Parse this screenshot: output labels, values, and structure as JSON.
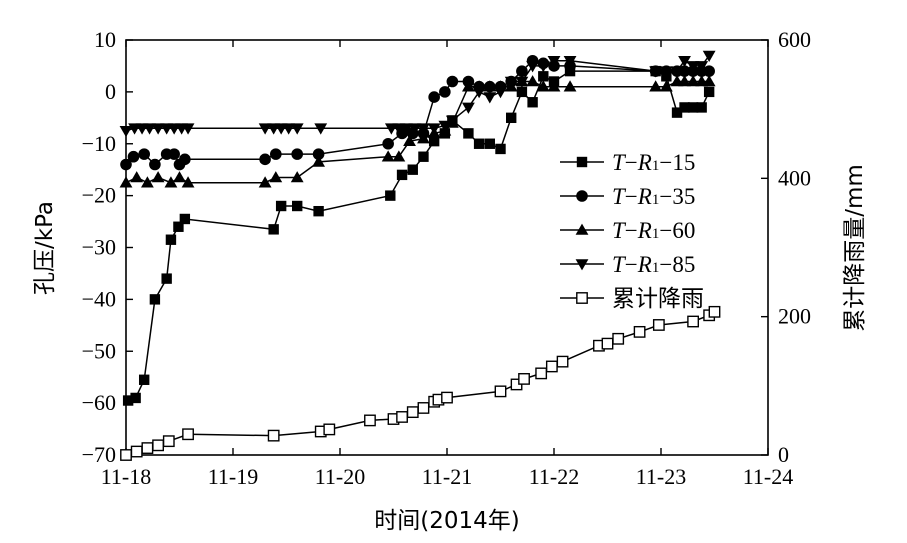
{
  "chart_data": {
    "type": "line",
    "ylabel_left": "孔压/kPa",
    "ylabel_right": "累计降雨量/mm",
    "xlabel": "时间(2014年)",
    "x_ticks": [
      "11-18",
      "11-19",
      "11-20",
      "11-21",
      "11-22",
      "11-23",
      "11-24"
    ],
    "xlim": [
      0,
      6
    ],
    "y_left_ticks": [
      "10",
      "0",
      "−10",
      "−20",
      "−30",
      "−40",
      "−50",
      "−60",
      "−70"
    ],
    "y_left_tick_values": [
      10,
      0,
      -10,
      -20,
      -30,
      -40,
      -50,
      -60,
      -70
    ],
    "ylim_left": [
      -70,
      10
    ],
    "y_right_ticks": [
      "0",
      "200",
      "400",
      "600"
    ],
    "y_right_tick_values": [
      0,
      200,
      400,
      600
    ],
    "ylim_right": [
      0,
      600
    ],
    "legend_position": "right-middle",
    "series": [
      {
        "key": "tr15",
        "name": "T−R1−15",
        "legend": {
          "t": "T",
          "dash1": "−",
          "r": "R",
          "sub": "1",
          "rest": "−15"
        },
        "marker": "square-filled",
        "axis": "left",
        "points": [
          [
            0.02,
            -59.5
          ],
          [
            0.09,
            -59
          ],
          [
            0.17,
            -55.5
          ],
          [
            0.27,
            -40
          ],
          [
            0.38,
            -36
          ],
          [
            0.42,
            -28.5
          ],
          [
            0.49,
            -26
          ],
          [
            0.55,
            -24.5
          ],
          [
            1.38,
            -26.5
          ],
          [
            1.45,
            -22
          ],
          [
            1.6,
            -22
          ],
          [
            1.8,
            -23
          ],
          [
            2.47,
            -20
          ],
          [
            2.58,
            -16
          ],
          [
            2.68,
            -15
          ],
          [
            2.78,
            -12.5
          ],
          [
            2.88,
            -9.5
          ],
          [
            2.98,
            -8
          ],
          [
            3.05,
            -5.5
          ],
          [
            3.2,
            -8
          ],
          [
            3.3,
            -10
          ],
          [
            3.4,
            -10
          ],
          [
            3.5,
            -11
          ],
          [
            3.6,
            -5
          ],
          [
            3.7,
            0
          ],
          [
            3.8,
            -2
          ],
          [
            3.9,
            3
          ],
          [
            4.0,
            2
          ],
          [
            4.15,
            4
          ],
          [
            4.95,
            4
          ],
          [
            5.05,
            3
          ],
          [
            5.15,
            -4
          ],
          [
            5.22,
            -3
          ],
          [
            5.3,
            -3
          ],
          [
            5.38,
            -3
          ],
          [
            5.45,
            0
          ]
        ]
      },
      {
        "key": "tr35",
        "name": "T−R1−35",
        "legend": {
          "t": "T",
          "dash1": "−",
          "r": "R",
          "sub": "1",
          "rest": "−35"
        },
        "marker": "circle-filled",
        "axis": "left",
        "points": [
          [
            0.0,
            -14
          ],
          [
            0.07,
            -12.5
          ],
          [
            0.17,
            -12
          ],
          [
            0.27,
            -14
          ],
          [
            0.38,
            -12
          ],
          [
            0.45,
            -12
          ],
          [
            0.5,
            -14
          ],
          [
            0.55,
            -13
          ],
          [
            1.3,
            -13
          ],
          [
            1.4,
            -12
          ],
          [
            1.6,
            -12
          ],
          [
            1.8,
            -12
          ],
          [
            2.45,
            -10
          ],
          [
            2.58,
            -8
          ],
          [
            2.68,
            -8
          ],
          [
            2.78,
            -8
          ],
          [
            2.88,
            -1
          ],
          [
            2.98,
            0
          ],
          [
            3.05,
            2
          ],
          [
            3.2,
            2
          ],
          [
            3.3,
            1
          ],
          [
            3.4,
            1
          ],
          [
            3.5,
            1
          ],
          [
            3.6,
            2
          ],
          [
            3.7,
            4
          ],
          [
            3.8,
            6
          ],
          [
            3.9,
            5.5
          ],
          [
            4.0,
            5
          ],
          [
            4.15,
            5
          ],
          [
            4.95,
            4
          ],
          [
            5.05,
            4
          ],
          [
            5.15,
            4
          ],
          [
            5.22,
            4
          ],
          [
            5.3,
            4
          ],
          [
            5.38,
            4
          ],
          [
            5.45,
            4
          ]
        ]
      },
      {
        "key": "tr60",
        "name": "T−R1−60",
        "legend": {
          "t": "T",
          "dash1": "−",
          "r": "R",
          "sub": "1",
          "rest": "−60"
        },
        "marker": "triangle-up-filled",
        "axis": "left",
        "points": [
          [
            0.0,
            -17.5
          ],
          [
            0.1,
            -16.5
          ],
          [
            0.2,
            -17.5
          ],
          [
            0.3,
            -16.5
          ],
          [
            0.42,
            -17.5
          ],
          [
            0.5,
            -16.5
          ],
          [
            0.58,
            -17.5
          ],
          [
            1.3,
            -17.5
          ],
          [
            1.4,
            -16.5
          ],
          [
            1.6,
            -16.5
          ],
          [
            1.8,
            -13.5
          ],
          [
            2.45,
            -12.5
          ],
          [
            2.55,
            -12.5
          ],
          [
            2.65,
            -9.5
          ],
          [
            2.78,
            -9
          ],
          [
            2.88,
            -8
          ],
          [
            2.98,
            -7.5
          ],
          [
            3.05,
            -6
          ],
          [
            3.2,
            1
          ],
          [
            3.3,
            1
          ],
          [
            3.4,
            1
          ],
          [
            3.5,
            1
          ],
          [
            3.6,
            1
          ],
          [
            3.7,
            2
          ],
          [
            3.8,
            2
          ],
          [
            3.9,
            1
          ],
          [
            4.0,
            1
          ],
          [
            4.15,
            1
          ],
          [
            4.95,
            1
          ],
          [
            5.05,
            1
          ],
          [
            5.15,
            2
          ],
          [
            5.22,
            2
          ],
          [
            5.3,
            2
          ],
          [
            5.38,
            2
          ],
          [
            5.45,
            2
          ]
        ]
      },
      {
        "key": "tr85",
        "name": "T−R1−85",
        "legend": {
          "t": "T",
          "dash1": "−",
          "r": "R",
          "sub": "1",
          "rest": "−85"
        },
        "marker": "triangle-down-filled",
        "axis": "left",
        "points": [
          [
            0.0,
            -7.5
          ],
          [
            0.08,
            -7
          ],
          [
            0.15,
            -7
          ],
          [
            0.22,
            -7
          ],
          [
            0.3,
            -7
          ],
          [
            0.38,
            -7
          ],
          [
            0.45,
            -7
          ],
          [
            0.52,
            -7
          ],
          [
            0.58,
            -7
          ],
          [
            1.3,
            -7
          ],
          [
            1.38,
            -7
          ],
          [
            1.45,
            -7
          ],
          [
            1.52,
            -7
          ],
          [
            1.6,
            -7
          ],
          [
            1.82,
            -7
          ],
          [
            2.48,
            -7
          ],
          [
            2.55,
            -7
          ],
          [
            2.62,
            -7
          ],
          [
            2.7,
            -7
          ],
          [
            2.78,
            -7
          ],
          [
            2.88,
            -7
          ],
          [
            2.98,
            -6.5
          ],
          [
            3.05,
            -5.5
          ],
          [
            3.2,
            -3
          ],
          [
            3.3,
            0
          ],
          [
            3.4,
            -1
          ],
          [
            3.5,
            0
          ],
          [
            3.6,
            2
          ],
          [
            3.7,
            2
          ],
          [
            3.8,
            5
          ],
          [
            3.9,
            5
          ],
          [
            4.0,
            6
          ],
          [
            4.15,
            6
          ],
          [
            4.95,
            4
          ],
          [
            5.05,
            4
          ],
          [
            5.15,
            4
          ],
          [
            5.22,
            6
          ],
          [
            5.3,
            5
          ],
          [
            5.38,
            5
          ],
          [
            5.45,
            7
          ]
        ]
      },
      {
        "key": "rain",
        "name": "累计降雨",
        "legend": {
          "text": "累计降雨"
        },
        "marker": "square-open",
        "axis": "right",
        "points": [
          [
            0.0,
            0
          ],
          [
            0.1,
            5
          ],
          [
            0.2,
            10
          ],
          [
            0.3,
            14
          ],
          [
            0.4,
            20
          ],
          [
            0.58,
            30
          ],
          [
            1.38,
            28
          ],
          [
            1.82,
            34
          ],
          [
            1.9,
            37
          ],
          [
            2.28,
            50
          ],
          [
            2.5,
            52
          ],
          [
            2.58,
            55
          ],
          [
            2.68,
            62
          ],
          [
            2.78,
            68
          ],
          [
            2.88,
            77
          ],
          [
            2.92,
            80
          ],
          [
            3.0,
            83
          ],
          [
            3.5,
            92
          ],
          [
            3.65,
            102
          ],
          [
            3.72,
            110
          ],
          [
            3.88,
            118
          ],
          [
            3.98,
            128
          ],
          [
            4.08,
            135
          ],
          [
            4.42,
            158
          ],
          [
            4.5,
            161
          ],
          [
            4.6,
            168
          ],
          [
            4.8,
            178
          ],
          [
            4.98,
            188
          ],
          [
            5.3,
            193
          ],
          [
            5.45,
            202
          ],
          [
            5.5,
            207
          ]
        ]
      }
    ]
  }
}
